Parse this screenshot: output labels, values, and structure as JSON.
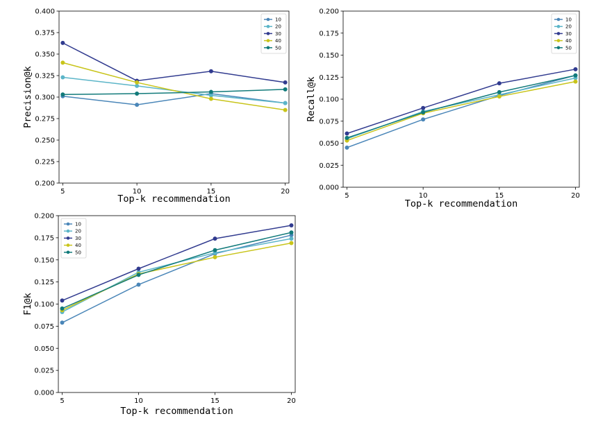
{
  "chart_data": [
    {
      "type": "line",
      "title": "",
      "xlabel": "Top-k recommendation",
      "ylabel": "Precision@k",
      "x": [
        5,
        10,
        15,
        20
      ],
      "xticks": [
        "5",
        "10",
        "15",
        "20"
      ],
      "ylim": [
        0.2,
        0.4
      ],
      "yticks": [
        "0.200",
        "0.225",
        "0.250",
        "0.275",
        "0.300",
        "0.325",
        "0.350",
        "0.375",
        "0.400"
      ],
      "legend_position": "top-right",
      "grid": false,
      "series": [
        {
          "name": "10",
          "color": "#4a86b8",
          "values": [
            0.301,
            0.291,
            0.304,
            0.293
          ]
        },
        {
          "name": "20",
          "color": "#5bb5c8",
          "values": [
            0.323,
            0.313,
            0.302,
            0.293
          ]
        },
        {
          "name": "30",
          "color": "#313b8f",
          "values": [
            0.363,
            0.319,
            0.33,
            0.317
          ]
        },
        {
          "name": "40",
          "color": "#c8c41a",
          "values": [
            0.34,
            0.317,
            0.298,
            0.285
          ]
        },
        {
          "name": "50",
          "color": "#117a7a",
          "values": [
            0.303,
            0.304,
            0.306,
            0.309
          ]
        }
      ]
    },
    {
      "type": "line",
      "title": "",
      "xlabel": "Top-k recommendation",
      "ylabel": "Recall@k",
      "x": [
        5,
        10,
        15,
        20
      ],
      "xticks": [
        "5",
        "10",
        "15",
        "20"
      ],
      "ylim": [
        0.0,
        0.2
      ],
      "yticks": [
        "0.000",
        "0.025",
        "0.050",
        "0.075",
        "0.100",
        "0.125",
        "0.150",
        "0.175",
        "0.200"
      ],
      "legend_position": "top-right",
      "grid": false,
      "series": [
        {
          "name": "10",
          "color": "#4a86b8",
          "values": [
            0.045,
            0.077,
            0.104,
            0.127
          ]
        },
        {
          "name": "20",
          "color": "#5bb5c8",
          "values": [
            0.055,
            0.086,
            0.105,
            0.124
          ]
        },
        {
          "name": "30",
          "color": "#313b8f",
          "values": [
            0.061,
            0.09,
            0.118,
            0.134
          ]
        },
        {
          "name": "40",
          "color": "#c8c41a",
          "values": [
            0.053,
            0.084,
            0.103,
            0.12
          ]
        },
        {
          "name": "50",
          "color": "#117a7a",
          "values": [
            0.056,
            0.085,
            0.108,
            0.127
          ]
        }
      ]
    },
    {
      "type": "line",
      "title": "",
      "xlabel": "Top-k recommendation",
      "ylabel": "F1@k",
      "x": [
        5,
        10,
        15,
        20
      ],
      "xticks": [
        "5",
        "10",
        "15",
        "20"
      ],
      "ylim": [
        0.0,
        0.2
      ],
      "yticks": [
        "0.000",
        "0.025",
        "0.050",
        "0.075",
        "0.100",
        "0.125",
        "0.150",
        "0.175",
        "0.200"
      ],
      "legend_position": "top-left",
      "grid": false,
      "series": [
        {
          "name": "10",
          "color": "#4a86b8",
          "values": [
            0.079,
            0.122,
            0.157,
            0.178
          ]
        },
        {
          "name": "20",
          "color": "#5bb5c8",
          "values": [
            0.091,
            0.136,
            0.158,
            0.174
          ]
        },
        {
          "name": "30",
          "color": "#313b8f",
          "values": [
            0.104,
            0.14,
            0.174,
            0.189
          ]
        },
        {
          "name": "40",
          "color": "#c8c41a",
          "values": [
            0.093,
            0.134,
            0.153,
            0.169
          ]
        },
        {
          "name": "50",
          "color": "#117a7a",
          "values": [
            0.095,
            0.133,
            0.161,
            0.181
          ]
        }
      ]
    }
  ]
}
